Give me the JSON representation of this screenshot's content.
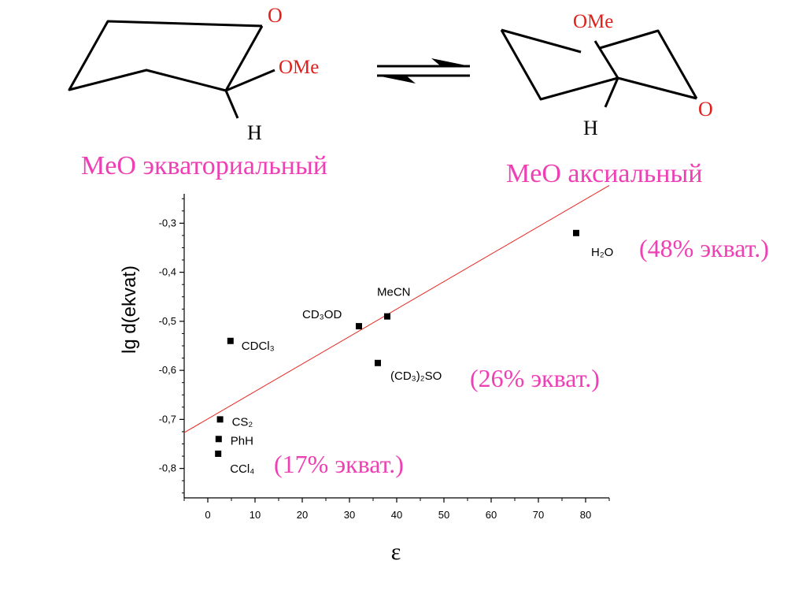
{
  "reaction": {
    "left": {
      "ring_oxygen": "O",
      "substituent": "OMe",
      "hydrogen": "H",
      "label": "MeO экваториальный"
    },
    "right": {
      "ring_oxygen": "O",
      "substituent": "OMe",
      "hydrogen": "H",
      "label": "MeO аксиальный"
    }
  },
  "annotations": {
    "h2o": "(48% экват.)",
    "dmso": "(26% экват.)",
    "ccl4": "(17% экват.)"
  },
  "colors": {
    "pink": "#ee3fb4",
    "red_o": "#e0201a",
    "fit_line": "#e8251f"
  },
  "chart_data": {
    "type": "scatter",
    "xlabel": "ε",
    "ylabel": "lg d(ekvat)",
    "xlim": [
      -5,
      85
    ],
    "ylim": [
      -0.86,
      -0.24
    ],
    "x_ticks": [
      "0",
      "10",
      "20",
      "30",
      "40",
      "50",
      "60",
      "70",
      "80"
    ],
    "y_ticks": [
      "-0,3",
      "-0,4",
      "-0,5",
      "-0,6",
      "-0,7",
      "-0,8"
    ],
    "points": [
      {
        "label": "H₂O",
        "x": 78,
        "y": -0.32
      },
      {
        "label": "MeCN",
        "x": 38,
        "y": -0.49
      },
      {
        "label": "CD₃OD",
        "x": 32,
        "y": -0.51
      },
      {
        "label": "CDCl₃",
        "x": 4.8,
        "y": -0.54
      },
      {
        "label": "(CD₃)₂SO",
        "x": 36,
        "y": -0.585
      },
      {
        "label": "CS₂",
        "x": 2.6,
        "y": -0.7
      },
      {
        "label": "PhH",
        "x": 2.3,
        "y": -0.74
      },
      {
        "label": "CCl₄",
        "x": 2.2,
        "y": -0.77
      }
    ],
    "fit_line": {
      "x": [
        -5,
        85
      ],
      "y": [
        -0.727,
        -0.223
      ]
    },
    "legend": "none",
    "grid": false
  }
}
